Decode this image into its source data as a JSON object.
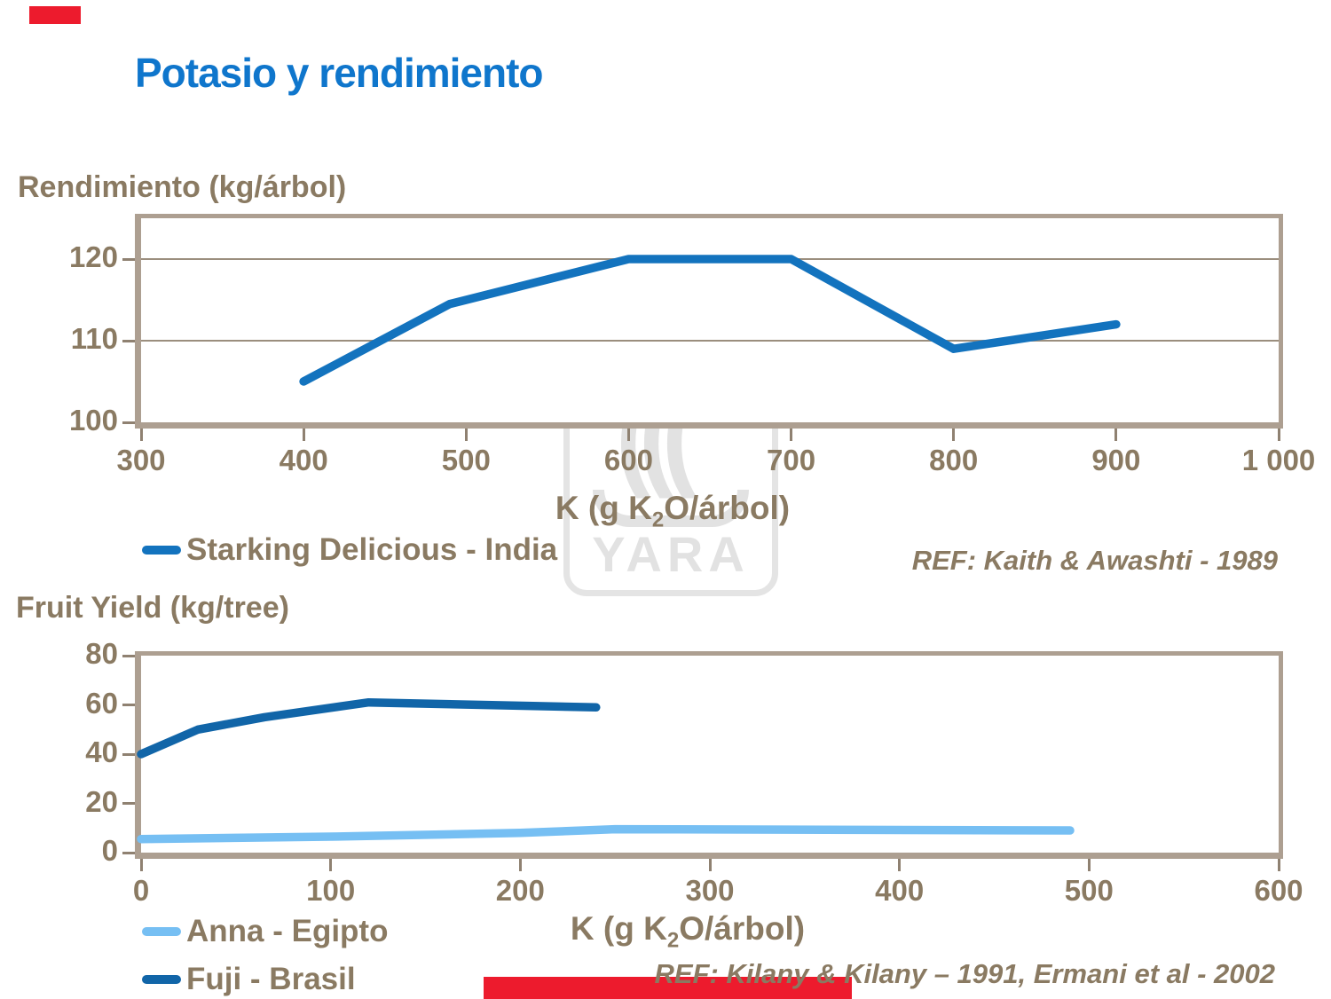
{
  "title": "Potasio y rendimiento",
  "colors": {
    "title_blue": "#0F76CC",
    "text_brown": "#8A7A62",
    "axis_tan": "#AD9F91",
    "starking_blue": "#1373BE",
    "fuji_blue": "#1165A8",
    "anna_blue": "#76BFF3",
    "accent_red": "#ED1B2D",
    "watermark_grey": "#E2E2E2"
  },
  "watermark": {
    "logo_text": "YARA",
    "arcs": "((("
  },
  "chart_data": [
    {
      "id": "chart1",
      "type": "line",
      "title": "Rendimiento (kg/árbol)",
      "xlabel_pre": "K (g K",
      "xlabel_sub": "2",
      "xlabel_post": "O/árbol)",
      "x_range": [
        300,
        1000
      ],
      "y_range_draw": [
        100,
        125
      ],
      "ylim": [
        100,
        120
      ],
      "grid": true,
      "gridlines_y": [
        110,
        120
      ],
      "x_ticks": [
        {
          "v": 300,
          "label": "300"
        },
        {
          "v": 400,
          "label": "400"
        },
        {
          "v": 500,
          "label": "500"
        },
        {
          "v": 600,
          "label": "600"
        },
        {
          "v": 700,
          "label": "700"
        },
        {
          "v": 800,
          "label": "800"
        },
        {
          "v": 900,
          "label": "900"
        },
        {
          "v": 1000,
          "label": "1 000"
        }
      ],
      "y_ticks": [
        {
          "v": 100,
          "label": "100"
        },
        {
          "v": 110,
          "label": "110"
        },
        {
          "v": 120,
          "label": "120"
        }
      ],
      "series": [
        {
          "name": "Starking Delicious - India",
          "color": "#1373BE",
          "x": [
            400,
            490,
            600,
            700,
            800,
            900
          ],
          "y": [
            105,
            114.5,
            120,
            120,
            109,
            112
          ]
        }
      ],
      "legend": [
        {
          "label": "Starking Delicious - India",
          "color": "#1373BE"
        }
      ],
      "legend_position": "bottom-left",
      "ref": "REF: Kaith & Awashti - 1989"
    },
    {
      "id": "chart2",
      "type": "line",
      "title": "Fruit Yield (kg/tree)",
      "xlabel_pre": "K (g K",
      "xlabel_sub": "2",
      "xlabel_post": "O/árbol)",
      "x_range": [
        0,
        600
      ],
      "y_range_draw": [
        0,
        80
      ],
      "ylim": [
        0,
        80
      ],
      "grid": false,
      "gridlines_y": [],
      "x_ticks": [
        {
          "v": 0,
          "label": "0"
        },
        {
          "v": 100,
          "label": "100"
        },
        {
          "v": 200,
          "label": "200"
        },
        {
          "v": 300,
          "label": "300"
        },
        {
          "v": 400,
          "label": "400"
        },
        {
          "v": 500,
          "label": "500"
        },
        {
          "v": 600,
          "label": "600"
        }
      ],
      "y_ticks": [
        {
          "v": 0,
          "label": "0"
        },
        {
          "v": 20,
          "label": "20"
        },
        {
          "v": 40,
          "label": "40"
        },
        {
          "v": 60,
          "label": "60"
        },
        {
          "v": 80,
          "label": "80"
        }
      ],
      "series": [
        {
          "name": "Anna - Egipto",
          "color": "#76BFF3",
          "x": [
            0,
            100,
            200,
            250,
            490
          ],
          "y": [
            5.5,
            6.5,
            8,
            9.5,
            9
          ]
        },
        {
          "name": "Fuji - Brasil",
          "color": "#1165A8",
          "x": [
            0,
            30,
            65,
            120,
            240
          ],
          "y": [
            40,
            50,
            55,
            61,
            59
          ]
        }
      ],
      "legend": [
        {
          "label": "Anna - Egipto",
          "color": "#76BFF3"
        },
        {
          "label": "Fuji - Brasil",
          "color": "#1165A8"
        }
      ],
      "legend_position": "bottom-left",
      "ref": "REF: Kilany & Kilany – 1991, Ermani et al - 2002"
    }
  ]
}
